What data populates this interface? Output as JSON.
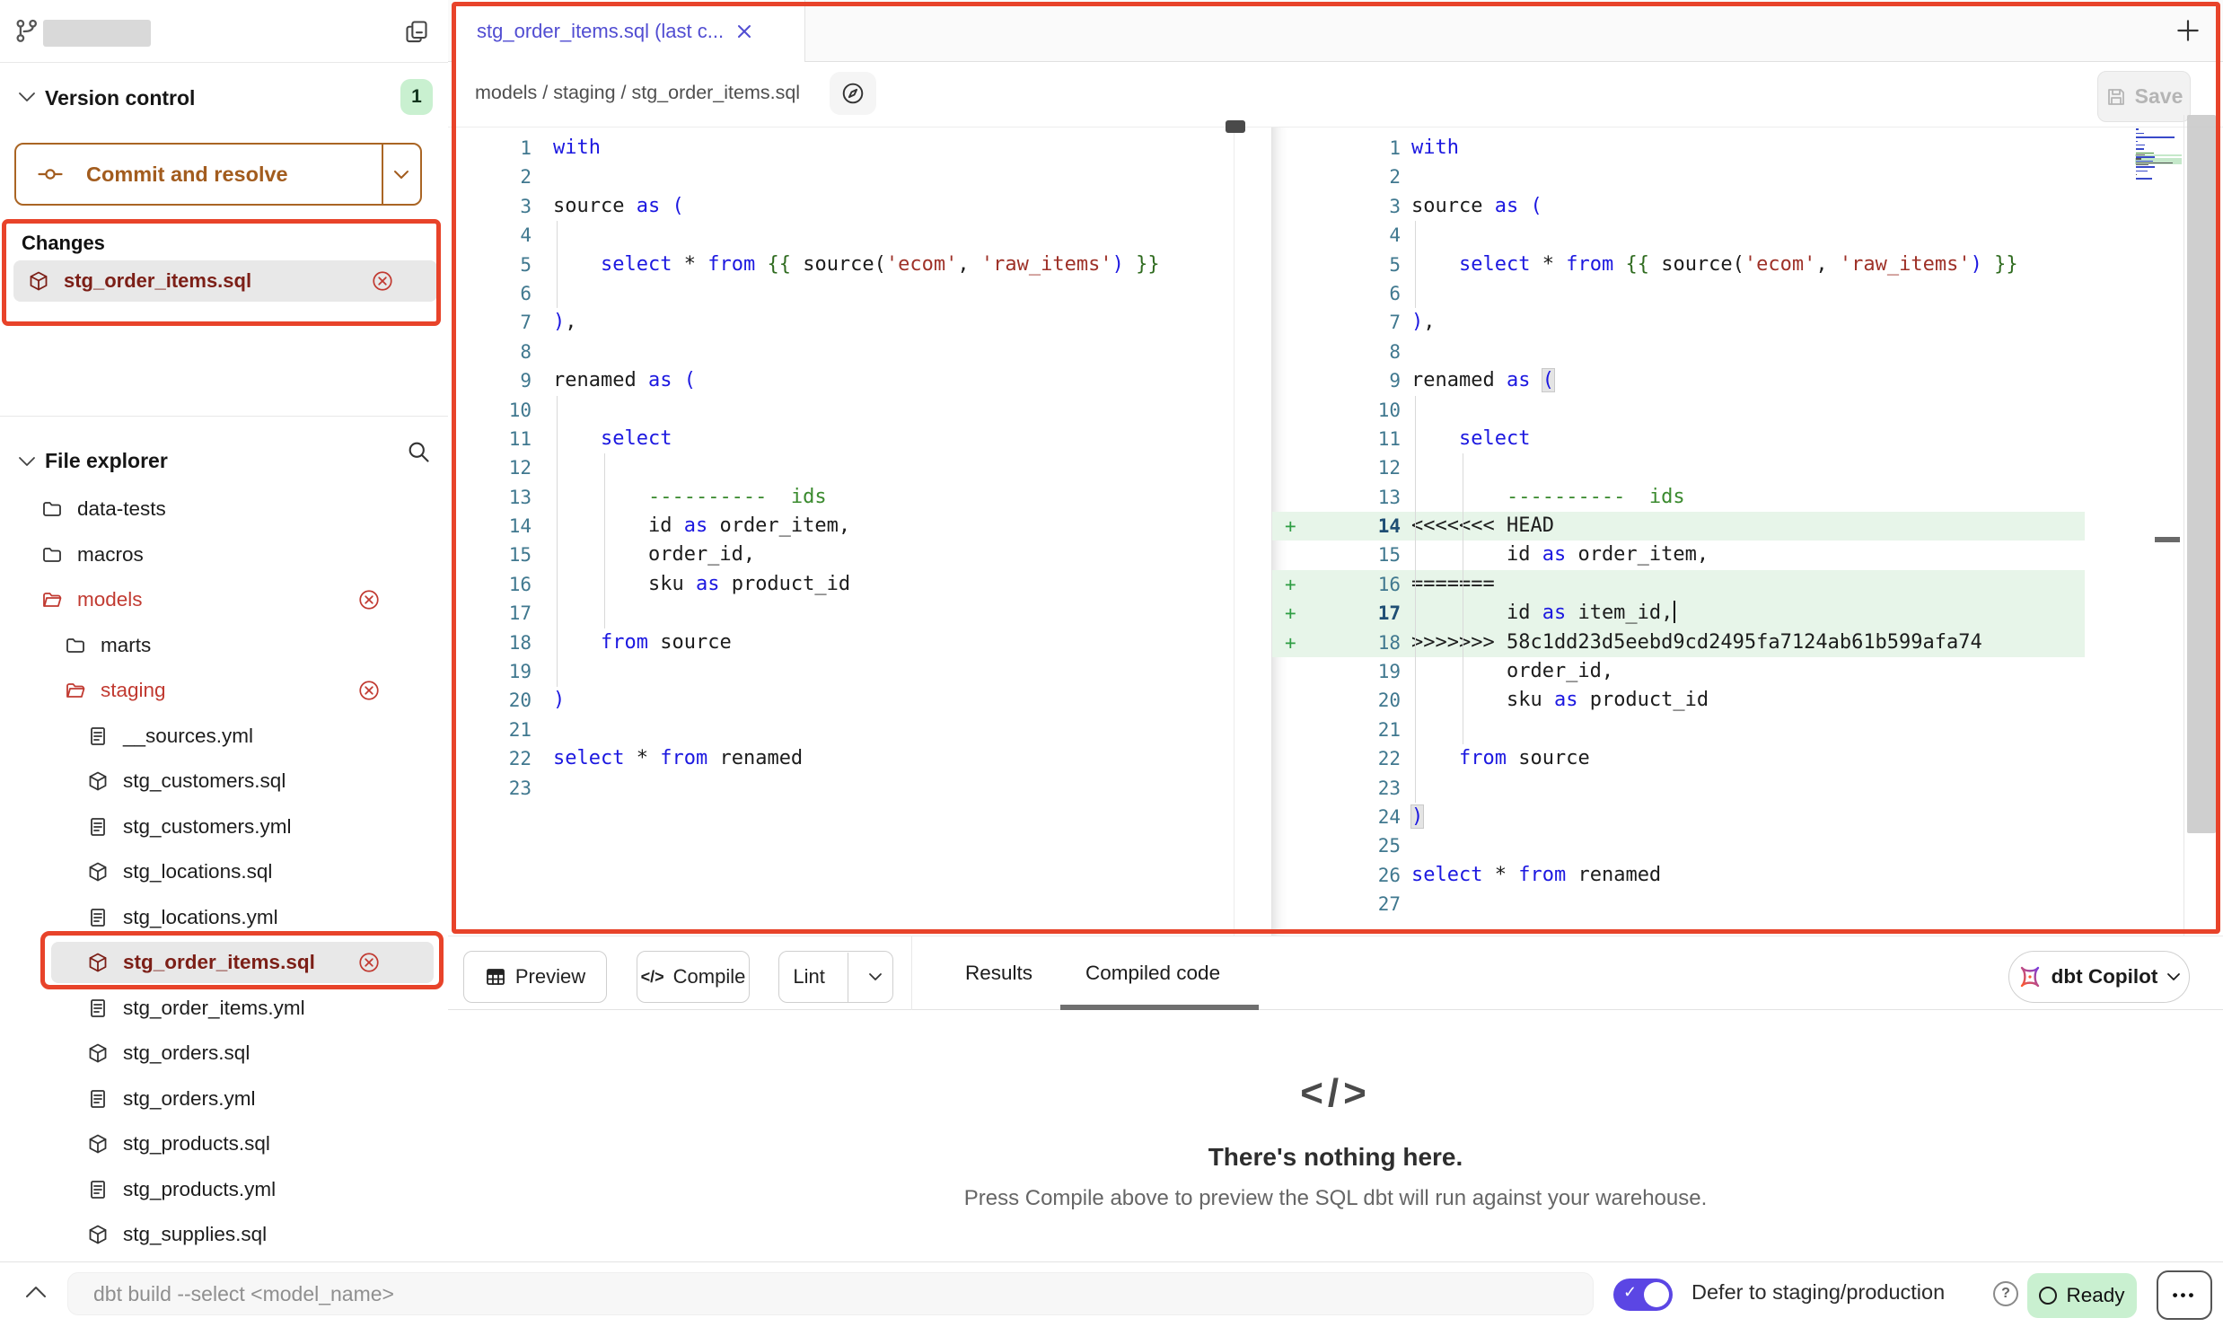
{
  "colors": {
    "annotation_red": "#e8432a",
    "changed_red": "#c13a31",
    "selected_file_maroon": "#7c1f17",
    "accent_purple": "#514dd2",
    "commit_orange": "#a25c1e",
    "badge_green_bg": "#c9f0d0",
    "diff_add_bg": "#e7f5e9",
    "diff_plus_green": "#2f9e44",
    "toggle_indigo": "#5b46e4",
    "ready_green_bg": "#c9f0d0"
  },
  "sidebar": {
    "version_control": {
      "title": "Version control",
      "badge_count": "1",
      "commit_button_label": "Commit and resolve"
    },
    "changes": {
      "title": "Changes",
      "items": [
        {
          "label": "stg_order_items.sql",
          "icon": "model",
          "removable": true
        }
      ]
    },
    "file_explorer": {
      "title": "File explorer",
      "items": [
        {
          "label": "data-tests",
          "icon": "folder",
          "indent": 0
        },
        {
          "label": "macros",
          "icon": "folder",
          "indent": 0
        },
        {
          "label": "models",
          "icon": "folder-open",
          "indent": 0,
          "changed": true,
          "removable": true
        },
        {
          "label": "marts",
          "icon": "folder",
          "indent": 1
        },
        {
          "label": "staging",
          "icon": "folder-open",
          "indent": 1,
          "changed": true,
          "removable": true
        },
        {
          "label": "__sources.yml",
          "icon": "file",
          "indent": 2
        },
        {
          "label": "stg_customers.sql",
          "icon": "model",
          "indent": 2
        },
        {
          "label": "stg_customers.yml",
          "icon": "file",
          "indent": 2
        },
        {
          "label": "stg_locations.sql",
          "icon": "model",
          "indent": 2
        },
        {
          "label": "stg_locations.yml",
          "icon": "file",
          "indent": 2
        },
        {
          "label": "stg_order_items.sql",
          "icon": "model",
          "indent": 2,
          "selected": true,
          "removable": true
        },
        {
          "label": "stg_order_items.yml",
          "icon": "file",
          "indent": 2
        },
        {
          "label": "stg_orders.sql",
          "icon": "model",
          "indent": 2
        },
        {
          "label": "stg_orders.yml",
          "icon": "file",
          "indent": 2
        },
        {
          "label": "stg_products.sql",
          "icon": "model",
          "indent": 2
        },
        {
          "label": "stg_products.yml",
          "icon": "file",
          "indent": 2
        },
        {
          "label": "stg_supplies.sql",
          "icon": "model",
          "indent": 2
        }
      ]
    }
  },
  "editor": {
    "tab_label": "stg_order_items.sql (last c...",
    "new_tab_button": "+",
    "breadcrumb": "models / staging / stg_order_items.sql",
    "save_button_label": "Save",
    "panes": {
      "left": {
        "guides": [
          {
            "col": 0,
            "from": 4,
            "to": 6
          },
          {
            "col": 0,
            "from": 10,
            "to": 19
          },
          {
            "col": 4,
            "from": 12,
            "to": 17
          }
        ],
        "lines": [
          {
            "n": 1,
            "segs": [
              [
                "k",
                "with"
              ]
            ]
          },
          {
            "n": 2,
            "segs": []
          },
          {
            "n": 3,
            "segs": [
              [
                "t",
                "source "
              ],
              [
                "k",
                "as"
              ],
              [
                "t",
                " "
              ],
              [
                "k",
                "("
              ]
            ]
          },
          {
            "n": 4,
            "segs": []
          },
          {
            "n": 5,
            "segs": [
              [
                "t",
                "    "
              ],
              [
                "k",
                "select"
              ],
              [
                "t",
                " * "
              ],
              [
                "k",
                "from"
              ],
              [
                "t",
                " "
              ],
              [
                "j",
                "{{"
              ],
              [
                "t",
                " source("
              ],
              [
                "s",
                "'ecom'"
              ],
              [
                "t",
                ", "
              ],
              [
                "s",
                "'raw_items'"
              ],
              [
                "k",
                ")"
              ],
              [
                "t",
                " "
              ],
              [
                "j",
                "}}"
              ]
            ]
          },
          {
            "n": 6,
            "segs": []
          },
          {
            "n": 7,
            "segs": [
              [
                "k",
                ")"
              ],
              [
                "t",
                ","
              ]
            ]
          },
          {
            "n": 8,
            "segs": []
          },
          {
            "n": 9,
            "segs": [
              [
                "t",
                "renamed "
              ],
              [
                "k",
                "as"
              ],
              [
                "t",
                " "
              ],
              [
                "k",
                "("
              ]
            ]
          },
          {
            "n": 10,
            "segs": []
          },
          {
            "n": 11,
            "segs": [
              [
                "t",
                "    "
              ],
              [
                "k",
                "select"
              ]
            ]
          },
          {
            "n": 12,
            "segs": []
          },
          {
            "n": 13,
            "segs": [
              [
                "t",
                "        "
              ],
              [
                "c",
                "----------  ids"
              ]
            ]
          },
          {
            "n": 14,
            "segs": [
              [
                "t",
                "        id "
              ],
              [
                "k",
                "as"
              ],
              [
                "t",
                " order_item,"
              ]
            ]
          },
          {
            "n": 15,
            "segs": [
              [
                "t",
                "        order_id,"
              ]
            ]
          },
          {
            "n": 16,
            "segs": [
              [
                "t",
                "        sku "
              ],
              [
                "k",
                "as"
              ],
              [
                "t",
                " product_id"
              ]
            ]
          },
          {
            "n": 17,
            "segs": []
          },
          {
            "n": 18,
            "segs": [
              [
                "t",
                "    "
              ],
              [
                "k",
                "from"
              ],
              [
                "t",
                " source"
              ]
            ]
          },
          {
            "n": 19,
            "segs": []
          },
          {
            "n": 20,
            "segs": [
              [
                "k",
                ")"
              ]
            ]
          },
          {
            "n": 21,
            "segs": []
          },
          {
            "n": 22,
            "segs": [
              [
                "k",
                "select"
              ],
              [
                "t",
                " * "
              ],
              [
                "k",
                "from"
              ],
              [
                "t",
                " renamed"
              ]
            ]
          },
          {
            "n": 23,
            "segs": []
          }
        ]
      },
      "right": {
        "guides": [
          {
            "col": 0,
            "from": 4,
            "to": 6
          },
          {
            "col": 0,
            "from": 10,
            "to": 23
          },
          {
            "col": 4,
            "from": 12,
            "to": 21
          }
        ],
        "lines": [
          {
            "n": 1,
            "segs": [
              [
                "k",
                "with"
              ]
            ]
          },
          {
            "n": 2,
            "segs": []
          },
          {
            "n": 3,
            "segs": [
              [
                "t",
                "source "
              ],
              [
                "k",
                "as"
              ],
              [
                "t",
                " "
              ],
              [
                "k",
                "("
              ]
            ]
          },
          {
            "n": 4,
            "segs": []
          },
          {
            "n": 5,
            "segs": [
              [
                "t",
                "    "
              ],
              [
                "k",
                "select"
              ],
              [
                "t",
                " * "
              ],
              [
                "k",
                "from"
              ],
              [
                "t",
                " "
              ],
              [
                "j",
                "{{"
              ],
              [
                "t",
                " source("
              ],
              [
                "s",
                "'ecom'"
              ],
              [
                "t",
                ", "
              ],
              [
                "s",
                "'raw_items'"
              ],
              [
                "k",
                ")"
              ],
              [
                "t",
                " "
              ],
              [
                "j",
                "}}"
              ]
            ]
          },
          {
            "n": 6,
            "segs": []
          },
          {
            "n": 7,
            "segs": [
              [
                "k",
                ")"
              ],
              [
                "t",
                ","
              ]
            ]
          },
          {
            "n": 8,
            "segs": []
          },
          {
            "n": 9,
            "segs": [
              [
                "t",
                "renamed "
              ],
              [
                "k",
                "as"
              ],
              [
                "t",
                " "
              ],
              [
                "m",
                "("
              ]
            ]
          },
          {
            "n": 10,
            "segs": []
          },
          {
            "n": 11,
            "segs": [
              [
                "t",
                "    "
              ],
              [
                "k",
                "select"
              ]
            ]
          },
          {
            "n": 12,
            "segs": []
          },
          {
            "n": 13,
            "segs": [
              [
                "t",
                "        "
              ],
              [
                "c",
                "----------  ids"
              ]
            ]
          },
          {
            "n": 14,
            "segs": [
              [
                "t",
                "<<<<<<< HEAD"
              ]
            ],
            "hl": true,
            "plus": true,
            "bold": true
          },
          {
            "n": 15,
            "segs": [
              [
                "t",
                "        id "
              ],
              [
                "k",
                "as"
              ],
              [
                "t",
                " order_item,"
              ]
            ]
          },
          {
            "n": 16,
            "segs": [
              [
                "t",
                "======="
              ]
            ],
            "hl": true,
            "plus": true
          },
          {
            "n": 17,
            "segs": [
              [
                "t",
                "        id "
              ],
              [
                "k",
                "as"
              ],
              [
                "t",
                " item_id,"
              ]
            ],
            "hl": true,
            "plus": true,
            "bold": true,
            "cursor": true
          },
          {
            "n": 18,
            "segs": [
              [
                "t",
                ">>>>>>> 58c1dd23d5eebd9cd2495fa7124ab61b599afa74"
              ]
            ],
            "hl": true,
            "plus": true
          },
          {
            "n": 19,
            "segs": [
              [
                "t",
                "        order_id,"
              ]
            ]
          },
          {
            "n": 20,
            "segs": [
              [
                "t",
                "        sku "
              ],
              [
                "k",
                "as"
              ],
              [
                "t",
                " product_id"
              ]
            ]
          },
          {
            "n": 21,
            "segs": []
          },
          {
            "n": 22,
            "segs": [
              [
                "t",
                "    "
              ],
              [
                "k",
                "from"
              ],
              [
                "t",
                " source"
              ]
            ]
          },
          {
            "n": 23,
            "segs": []
          },
          {
            "n": 24,
            "segs": [
              [
                "m",
                ")"
              ]
            ]
          },
          {
            "n": 25,
            "segs": []
          },
          {
            "n": 26,
            "segs": [
              [
                "k",
                "select"
              ],
              [
                "t",
                " * "
              ],
              [
                "k",
                "from"
              ],
              [
                "t",
                " renamed"
              ]
            ]
          },
          {
            "n": 27,
            "segs": []
          }
        ]
      }
    }
  },
  "toolbar": {
    "preview_label": "Preview",
    "compile_label": "Compile",
    "lint_label": "Lint",
    "tabs": [
      {
        "label": "Results",
        "active": false
      },
      {
        "label": "Compiled code",
        "active": true
      }
    ],
    "copilot_label": "dbt Copilot"
  },
  "results_panel": {
    "icon_glyph": "</>",
    "title": "There's nothing here.",
    "subtitle": "Press Compile above to preview the SQL dbt will run against your warehouse."
  },
  "status_bar": {
    "command_placeholder": "dbt build --select <model_name>",
    "defer_toggle_label": "Defer to staging/production",
    "ready_label": "Ready"
  }
}
